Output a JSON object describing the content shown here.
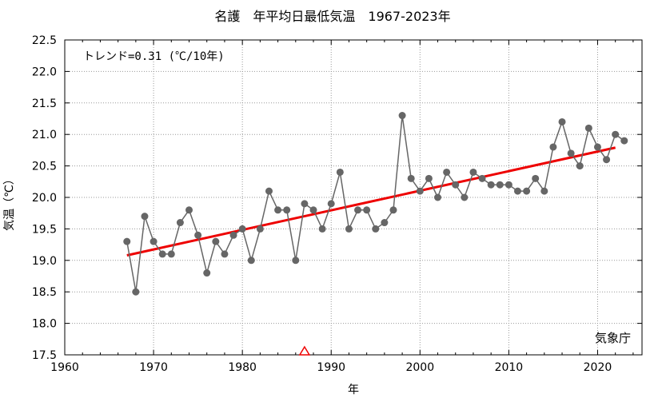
{
  "chart_data": {
    "type": "line",
    "title": "名護　年平均日最低気温　1967-2023年",
    "xlabel": "年",
    "ylabel": "気温（℃）",
    "xlim": [
      1960,
      2025
    ],
    "ylim": [
      17.5,
      22.5
    ],
    "xticks": [
      1960,
      1970,
      1980,
      1990,
      2000,
      2010,
      2020
    ],
    "yticks": [
      17.5,
      18.0,
      18.5,
      19.0,
      19.5,
      20.0,
      20.5,
      21.0,
      21.5,
      22.0,
      22.5
    ],
    "grid": true,
    "annotation": "トレンド=0.31 (℃/10年)",
    "credit": "気象庁",
    "series": [
      {
        "x": [
          1967,
          1968,
          1969,
          1970,
          1971,
          1972,
          1973,
          1974,
          1975,
          1976,
          1977,
          1978,
          1979,
          1980,
          1981,
          1982,
          1983,
          1984,
          1985,
          1986,
          1987,
          1988,
          1989,
          1990,
          1991,
          1992,
          1993,
          1994,
          1995,
          1996,
          1997,
          1998,
          1999,
          2000,
          2001,
          2002,
          2003,
          2004,
          2005,
          2006,
          2007,
          2008,
          2009,
          2010,
          2011,
          2012,
          2013,
          2014,
          2015,
          2016,
          2017,
          2018,
          2019,
          2020,
          2021,
          2022,
          2023
        ],
        "values": [
          19.3,
          18.5,
          19.7,
          19.3,
          19.1,
          19.1,
          19.6,
          19.8,
          19.4,
          18.8,
          19.3,
          19.1,
          19.4,
          19.5,
          19.0,
          19.5,
          20.1,
          19.8,
          19.8,
          19.0,
          19.9,
          19.8,
          19.5,
          19.9,
          20.4,
          19.5,
          19.8,
          19.8,
          19.5,
          19.6,
          19.8,
          21.3,
          20.3,
          20.1,
          20.3,
          20.0,
          20.4,
          20.2,
          20.0,
          20.4,
          20.3,
          20.2,
          20.2,
          20.2,
          20.1,
          20.1,
          20.3,
          20.1,
          20.8,
          21.2,
          20.7,
          20.5,
          21.1,
          20.8,
          20.6,
          21.0,
          20.9
        ],
        "color": "#666666"
      }
    ],
    "trend": {
      "x": [
        1967,
        2022
      ],
      "values": [
        19.08,
        20.79
      ],
      "color": "#ee0000"
    },
    "marker_triangle": {
      "x": 1987,
      "y": 17.5,
      "color": "#ee0000"
    }
  }
}
